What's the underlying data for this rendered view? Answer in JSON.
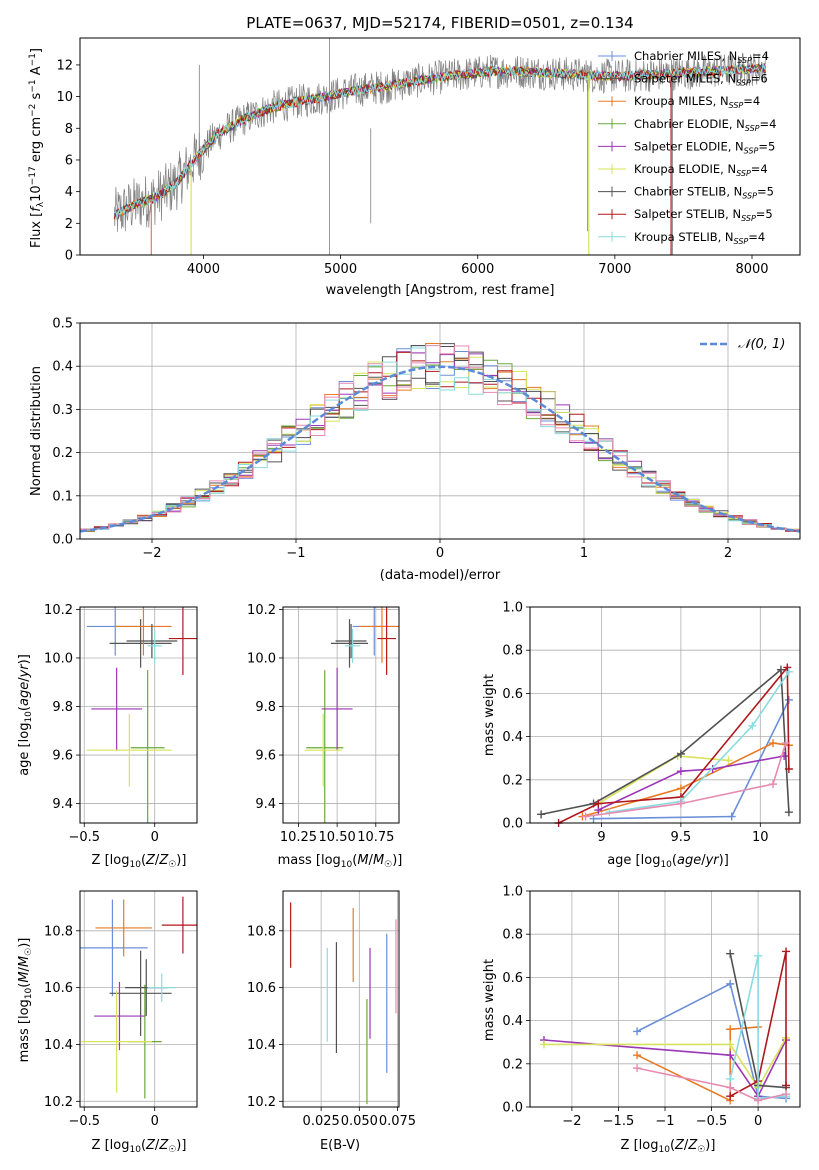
{
  "title": "PLATE=0637, MJD=52174, FIBERID=0501, z=0.134",
  "models": [
    {
      "name": "Chabrier MILES",
      "nssp": "4",
      "color": "#6a8fd8"
    },
    {
      "name": "Salpeter MILES",
      "nssp": "6",
      "color": "#555555"
    },
    {
      "name": "Kroupa MILES",
      "nssp": "4",
      "color": "#e87a25"
    },
    {
      "name": "Chabrier ELODIE",
      "nssp": "4",
      "color": "#6aaa3a"
    },
    {
      "name": "Salpeter ELODIE",
      "nssp": "5",
      "color": "#9b36b7"
    },
    {
      "name": "Kroupa ELODIE",
      "nssp": "4",
      "color": "#d8e35a"
    },
    {
      "name": "Chabrier STELIB",
      "nssp": "5",
      "color": "#505050"
    },
    {
      "name": "Salpeter STELIB",
      "nssp": "5",
      "color": "#b0181c"
    },
    {
      "name": "Kroupa STELIB",
      "nssp": "4",
      "color": "#8adbe0"
    }
  ],
  "nssp_prefix": "N",
  "nssp_sub": "SSP",
  "extra_colors": {
    "pink": "#e68ab0",
    "salmon": "#e8776f",
    "data_gray": "#808080",
    "gauss": "#5b8bd6"
  },
  "chart_data": [
    {
      "id": "spectrum",
      "type": "line",
      "title": "PLATE=0637, MJD=52174, FIBERID=0501, z=0.134",
      "xlabel": "wavelength [Angstrom, rest frame]",
      "ylabel": "Flux [f_λ 10^-17 erg cm^-2 s^-1 A^-1]",
      "xlim": [
        3100,
        8350
      ],
      "ylim": [
        0,
        13.7
      ],
      "xticks": [
        4000,
        5000,
        6000,
        7000,
        8000
      ],
      "yticks": [
        0,
        2,
        4,
        6,
        8,
        10,
        12
      ],
      "grid": false,
      "legend": "right",
      "continuum": {
        "x": [
          3350,
          3500,
          3650,
          3800,
          3950,
          4100,
          4300,
          4500,
          4700,
          4900,
          5100,
          5300,
          5500,
          5700,
          5900,
          6100,
          6300,
          6500,
          6700,
          6900,
          7100,
          7300,
          7500,
          7700,
          7900,
          8100
        ],
        "y": [
          2.5,
          3.2,
          3.6,
          4.5,
          6.2,
          7.6,
          8.6,
          9.3,
          9.7,
          10.0,
          10.4,
          10.6,
          10.9,
          11.2,
          11.4,
          11.6,
          11.6,
          11.5,
          11.4,
          11.3,
          11.3,
          11.4,
          11.5,
          11.6,
          11.7,
          11.8
        ]
      }
    },
    {
      "id": "residuals",
      "type": "bar",
      "xlabel": "(data-model)/error",
      "ylabel": "Normed distribution",
      "xlim": [
        -2.5,
        2.5
      ],
      "ylim": [
        0,
        0.5
      ],
      "xticks": [
        -2,
        -1,
        0,
        1,
        2
      ],
      "yticks": [
        0.0,
        0.1,
        0.2,
        0.3,
        0.4,
        0.5
      ],
      "grid": true,
      "legend": "top-right",
      "legend_label": "𝒩(0, 1)",
      "bin_width": 0.1
    },
    {
      "id": "age-vs-Z",
      "type": "scatter",
      "xlabel": "Z [log10(Z/Z☉)]",
      "ylabel": "age [log10(age/yr)]",
      "xlim": [
        -0.53,
        0.3
      ],
      "ylim": [
        9.32,
        10.21
      ],
      "xticks": [
        -0.5,
        0.0
      ],
      "yticks": [
        9.4,
        9.6,
        9.8,
        10.0,
        10.2
      ],
      "grid": true,
      "points": [
        {
          "model": "Chabrier MILES",
          "x": -0.28,
          "y": 10.13
        },
        {
          "model": "Salpeter MILES",
          "x": -0.1,
          "y": 10.06
        },
        {
          "model": "Kroupa MILES",
          "x": -0.08,
          "y": 10.13
        },
        {
          "model": "Chabrier ELODIE",
          "x": -0.05,
          "y": 9.63
        },
        {
          "model": "Salpeter ELODIE",
          "x": -0.27,
          "y": 9.79
        },
        {
          "model": "Kroupa ELODIE",
          "x": -0.18,
          "y": 9.62
        },
        {
          "model": "Chabrier STELIB",
          "x": -0.02,
          "y": 10.07
        },
        {
          "model": "Salpeter STELIB",
          "x": 0.2,
          "y": 10.08
        },
        {
          "model": "Kroupa STELIB",
          "x": 0.0,
          "y": 10.05
        }
      ]
    },
    {
      "id": "age-vs-mass",
      "type": "scatter",
      "xlabel": "mass [log10(M/M☉)]",
      "ylabel": "",
      "xlim": [
        10.15,
        10.9
      ],
      "ylim": [
        9.32,
        10.21
      ],
      "xticks": [
        10.25,
        10.5,
        10.75
      ],
      "yticks": [
        9.4,
        9.6,
        9.8,
        10.0,
        10.2
      ],
      "tick_labels": [
        "10.25",
        "10.50",
        "10.75"
      ],
      "grid": true,
      "points": [
        {
          "model": "Chabrier MILES",
          "x": 10.74,
          "y": 10.13
        },
        {
          "model": "Salpeter MILES",
          "x": 10.58,
          "y": 10.06
        },
        {
          "model": "Kroupa MILES",
          "x": 10.79,
          "y": 10.13
        },
        {
          "model": "Chabrier ELODIE",
          "x": 10.42,
          "y": 9.63
        },
        {
          "model": "Salpeter ELODIE",
          "x": 10.5,
          "y": 9.79
        },
        {
          "model": "Kroupa ELODIE",
          "x": 10.41,
          "y": 9.62
        },
        {
          "model": "Chabrier STELIB",
          "x": 10.59,
          "y": 10.07
        },
        {
          "model": "Salpeter STELIB",
          "x": 10.82,
          "y": 10.08
        },
        {
          "model": "Kroupa STELIB",
          "x": 10.6,
          "y": 10.05
        }
      ]
    },
    {
      "id": "mass-weight-vs-age",
      "type": "line",
      "xlabel": "age [log10(age/yr)]",
      "ylabel": "mass weight",
      "xlim": [
        8.55,
        10.25
      ],
      "ylim": [
        0,
        1
      ],
      "xticks": [
        9.0,
        9.5,
        10.0
      ],
      "yticks": [
        0.0,
        0.2,
        0.4,
        0.6,
        0.8,
        1.0
      ],
      "grid": true,
      "series": [
        {
          "model": "Chabrier MILES",
          "x": [
            8.95,
            9.82,
            10.18
          ],
          "y": [
            0.02,
            0.03,
            0.57
          ]
        },
        {
          "model": "Kroupa MILES",
          "x": [
            8.88,
            9.5,
            10.08,
            10.18
          ],
          "y": [
            0.03,
            0.16,
            0.37,
            0.36
          ]
        },
        {
          "model": "Salpeter ELODIE",
          "x": [
            8.98,
            9.5,
            9.7,
            10.15
          ],
          "y": [
            0.06,
            0.24,
            0.25,
            0.31
          ]
        },
        {
          "model": "Kroupa ELODIE",
          "x": [
            8.98,
            9.48,
            9.8
          ],
          "y": [
            0.09,
            0.31,
            0.29
          ]
        },
        {
          "model": "Chabrier STELIB",
          "x": [
            8.62,
            8.95,
            9.5,
            10.13,
            10.18
          ],
          "y": [
            0.04,
            0.09,
            0.32,
            0.71,
            0.05
          ]
        },
        {
          "model": "Salpeter STELIB",
          "x": [
            8.73,
            8.98,
            9.5,
            10.17,
            10.18
          ],
          "y": [
            0.0,
            0.09,
            0.12,
            0.72,
            0.25
          ]
        },
        {
          "model": "Kroupa STELIB",
          "x": [
            9.05,
            9.5,
            9.95,
            10.18
          ],
          "y": [
            0.05,
            0.1,
            0.45,
            0.7
          ]
        },
        {
          "model": "Pink",
          "x": [
            8.9,
            9.5,
            10.08,
            10.16
          ],
          "y": [
            0.03,
            0.09,
            0.18,
            0.37
          ]
        }
      ]
    },
    {
      "id": "mass-vs-Z",
      "type": "scatter",
      "xlabel": "Z [log10(Z/Z☉)]",
      "ylabel": "mass [log10(M/M☉)]",
      "xlim": [
        -0.53,
        0.3
      ],
      "ylim": [
        10.18,
        10.94
      ],
      "xticks": [
        -0.5,
        0.0
      ],
      "yticks": [
        10.2,
        10.4,
        10.6,
        10.8
      ],
      "grid": true,
      "points": [
        {
          "model": "Chabrier MILES",
          "x": -0.3,
          "y": 10.74
        },
        {
          "model": "Salpeter MILES",
          "x": -0.1,
          "y": 10.58
        },
        {
          "model": "Kroupa MILES",
          "x": -0.22,
          "y": 10.81
        },
        {
          "model": "Chabrier ELODIE",
          "x": -0.07,
          "y": 10.41
        },
        {
          "model": "Salpeter ELODIE",
          "x": -0.25,
          "y": 10.5
        },
        {
          "model": "Kroupa ELODIE",
          "x": -0.27,
          "y": 10.41
        },
        {
          "model": "Chabrier STELIB",
          "x": -0.06,
          "y": 10.6
        },
        {
          "model": "Salpeter STELIB",
          "x": 0.2,
          "y": 10.82
        },
        {
          "model": "Kroupa STELIB",
          "x": 0.05,
          "y": 10.6
        }
      ]
    },
    {
      "id": "mass-vs-EBV",
      "type": "scatter",
      "xlabel": "E(B-V)",
      "ylabel": "",
      "xlim": [
        0.0,
        0.076
      ],
      "ylim": [
        10.18,
        10.94
      ],
      "xticks": [
        0.025,
        0.05,
        0.075
      ],
      "tick_labels": [
        "0.025",
        "0.050",
        "0.075"
      ],
      "yticks": [
        10.2,
        10.4,
        10.6,
        10.8
      ],
      "grid": true,
      "points": [
        {
          "model": "Salpeter STELIB",
          "x": 0.005,
          "y": 10.79,
          "ylo": 10.67,
          "yhi": 10.9
        },
        {
          "model": "Kroupa STELIB",
          "x": 0.029,
          "y": 10.58,
          "ylo": 10.41,
          "yhi": 10.74
        },
        {
          "model": "Chabrier STELIB",
          "x": 0.035,
          "y": 10.56,
          "ylo": 10.37,
          "yhi": 10.76
        },
        {
          "model": "Kroupa MILES",
          "x": 0.046,
          "y": 10.75,
          "ylo": 10.62,
          "yhi": 10.88
        },
        {
          "model": "Chabrier ELODIE",
          "x": 0.055,
          "y": 10.37,
          "ylo": 10.19,
          "yhi": 10.56
        },
        {
          "model": "Salpeter ELODIE",
          "x": 0.057,
          "y": 10.55,
          "ylo": 10.42,
          "yhi": 10.74
        },
        {
          "model": "Chabrier MILES",
          "x": 0.068,
          "y": 10.55,
          "ylo": 10.3,
          "yhi": 10.79
        },
        {
          "model": "Pink",
          "x": 0.074,
          "y": 10.68,
          "ylo": 10.51,
          "yhi": 10.84
        }
      ]
    },
    {
      "id": "mass-weight-vs-Z",
      "type": "line",
      "xlabel": "Z [log10(Z/Z☉)]",
      "ylabel": "mass weight",
      "xlim": [
        -2.45,
        0.45
      ],
      "ylim": [
        0,
        1
      ],
      "xticks": [
        -2.0,
        -1.5,
        -1.0,
        -0.5,
        0.0
      ],
      "yticks": [
        0.0,
        0.2,
        0.4,
        0.6,
        0.8,
        1.0
      ],
      "grid": true,
      "series": [
        {
          "model": "Chabrier MILES",
          "x": [
            -1.3,
            -0.3,
            0.0,
            0.3
          ],
          "y": [
            0.35,
            0.57,
            0.05,
            0.04
          ]
        },
        {
          "model": "Kroupa MILES",
          "x": [
            -1.3,
            -0.3,
            -0.3,
            0.0
          ],
          "y": [
            0.24,
            0.03,
            0.36,
            0.37
          ]
        },
        {
          "model": "Salpeter ELODIE",
          "x": [
            -2.3,
            -0.3,
            0.0,
            0.3
          ],
          "y": [
            0.31,
            0.24,
            0.05,
            0.31
          ]
        },
        {
          "model": "Kroupa ELODIE",
          "x": [
            -2.3,
            -0.3,
            0.0,
            0.3
          ],
          "y": [
            0.29,
            0.29,
            0.09,
            0.32
          ]
        },
        {
          "model": "Chabrier STELIB",
          "x": [
            -0.3,
            0.0,
            0.3
          ],
          "y": [
            0.71,
            0.1,
            0.09
          ]
        },
        {
          "model": "Salpeter STELIB",
          "x": [
            -0.3,
            0.0,
            0.3,
            0.3
          ],
          "y": [
            0.05,
            0.12,
            0.72,
            0.1
          ]
        },
        {
          "model": "Kroupa STELIB",
          "x": [
            -0.3,
            0.0,
            0.0,
            0.3
          ],
          "y": [
            0.13,
            0.7,
            0.04,
            0.05
          ]
        },
        {
          "model": "Pink",
          "x": [
            -1.3,
            -0.3,
            0.0,
            0.3
          ],
          "y": [
            0.18,
            0.09,
            0.03,
            0.06
          ]
        }
      ]
    }
  ]
}
